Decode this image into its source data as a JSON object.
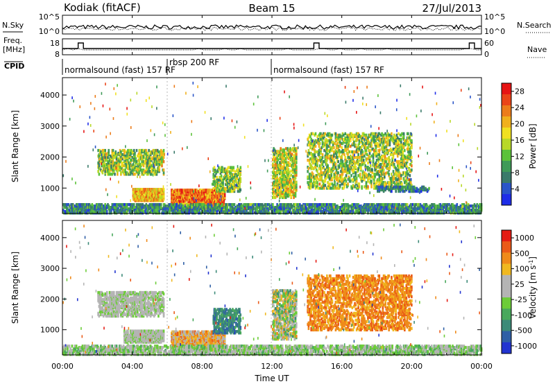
{
  "header": {
    "station": "Kodiak (fitACF)",
    "beam": "Beam 15",
    "date": "27/Jul/2013"
  },
  "panels": {
    "nsky_label": "N.Sky",
    "nsky_ticks": [
      "10^5",
      "10^0"
    ],
    "nsearch_label": "N.Search",
    "nsearch_ticks": [
      "10^5",
      "10^0"
    ],
    "freq_label": "Freq.",
    "freq_unit": "[MHz]",
    "freq_ticks": [
      "18",
      "8"
    ],
    "nave_label": "Nave",
    "nave_ticks": [
      "60",
      "0"
    ],
    "cpid_label": "CPID",
    "cpid_segments": [
      "normalsound (fast) 157 RF",
      "rbsp 200 RF",
      "normalsound (fast) 157 RF"
    ]
  },
  "colors": {
    "power_scale": [
      "#1e2de8",
      "#2a55c8",
      "#3a7a6a",
      "#3f9a58",
      "#5cc23a",
      "#b8d828",
      "#f0e020",
      "#f0b01c",
      "#ec7c1a",
      "#ea4418",
      "#e61414"
    ],
    "velocity_scale": [
      "#2234d0",
      "#2f5fa6",
      "#3c8a78",
      "#48a85c",
      "#6ccc38",
      "#b4b4b4",
      "#b4b4b4",
      "#f0b820",
      "#ef8a1a",
      "#ea5a18",
      "#e51c14"
    ]
  },
  "chart_data": [
    {
      "type": "heatmap",
      "name": "power",
      "xlabel": "",
      "ylabel": "Slant Range [km]",
      "x_ticks": [
        "00:00",
        "04:00",
        "08:00",
        "12:00",
        "16:00",
        "20:00",
        "00:00"
      ],
      "y_ticks": [
        1000,
        2000,
        3000,
        4000
      ],
      "xlim_hours": [
        0,
        24
      ],
      "ylim_km": [
        180,
        4560
      ],
      "colorbar": {
        "label": "Power [dB]",
        "ticks": [
          4,
          8,
          12,
          16,
          20,
          24,
          28
        ],
        "range": [
          0,
          30
        ]
      },
      "scatter_regions": [
        {
          "t0": 2.0,
          "t1": 5.8,
          "r0": 1450,
          "r1": 2250,
          "v0": 6,
          "v1": 22,
          "density": 0.45
        },
        {
          "t0": 4.0,
          "t1": 5.8,
          "r0": 600,
          "r1": 1000,
          "v0": 14,
          "v1": 26,
          "density": 0.75
        },
        {
          "t0": 6.2,
          "t1": 9.3,
          "r0": 350,
          "r1": 1000,
          "v0": 18,
          "v1": 30,
          "density": 0.8
        },
        {
          "t0": 8.6,
          "t1": 10.2,
          "r0": 900,
          "r1": 1700,
          "v0": 6,
          "v1": 20,
          "density": 0.45
        },
        {
          "t0": 12.0,
          "t1": 13.4,
          "r0": 700,
          "r1": 2300,
          "v0": 8,
          "v1": 24,
          "density": 0.45
        },
        {
          "t0": 14.0,
          "t1": 20.0,
          "r0": 1000,
          "r1": 2800,
          "v0": 6,
          "v1": 22,
          "density": 0.3
        },
        {
          "t0": 18.0,
          "t1": 21.0,
          "r0": 900,
          "r1": 1100,
          "v0": 2,
          "v1": 12,
          "density": 0.4
        },
        {
          "t0": 0.0,
          "t1": 24.0,
          "r0": 200,
          "r1": 520,
          "v0": 2,
          "v1": 14,
          "density": 0.55
        }
      ]
    },
    {
      "type": "heatmap",
      "name": "velocity",
      "xlabel": "Time UT",
      "ylabel": "Slant Range [km]",
      "x_ticks": [
        "00:00",
        "04:00",
        "08:00",
        "12:00",
        "16:00",
        "20:00",
        "00:00"
      ],
      "y_ticks": [
        1000,
        2000,
        3000,
        4000
      ],
      "xlim_hours": [
        0,
        24
      ],
      "ylim_km": [
        180,
        4560
      ],
      "colorbar": {
        "label": "Velocity [m s^-1]",
        "ticks": [
          1000,
          500,
          100,
          25,
          -25,
          -100,
          -500,
          -1000
        ]
      },
      "scatter_regions": [
        {
          "t0": 2.0,
          "t1": 5.8,
          "r0": 1450,
          "r1": 2250,
          "v0": 4,
          "v1": 6,
          "density": 0.45
        },
        {
          "t0": 3.5,
          "t1": 5.8,
          "r0": 600,
          "r1": 1000,
          "v0": 4,
          "v1": 6,
          "density": 0.7
        },
        {
          "t0": 6.2,
          "t1": 9.3,
          "r0": 350,
          "r1": 1000,
          "v0": 5,
          "v1": 9,
          "density": 0.75
        },
        {
          "t0": 8.6,
          "t1": 10.2,
          "r0": 900,
          "r1": 1700,
          "v0": 1,
          "v1": 3,
          "density": 0.45
        },
        {
          "t0": 12.0,
          "t1": 13.4,
          "r0": 700,
          "r1": 2300,
          "v0": 2,
          "v1": 8,
          "density": 0.45
        },
        {
          "t0": 14.0,
          "t1": 20.0,
          "r0": 1000,
          "r1": 2800,
          "v0": 7,
          "v1": 9,
          "density": 0.35
        },
        {
          "t0": 0.0,
          "t1": 24.0,
          "r0": 200,
          "r1": 520,
          "v0": 3,
          "v1": 6,
          "density": 0.5
        }
      ]
    }
  ]
}
